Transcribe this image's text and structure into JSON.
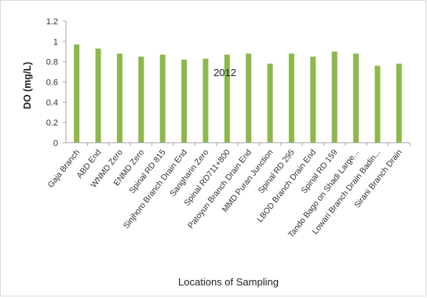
{
  "chart_data": {
    "type": "bar",
    "title": "",
    "annotation": "2012",
    "xlabel": "Locations of Sampling",
    "ylabel": "DO (mg/L)",
    "ylim": [
      0,
      1.2
    ],
    "yticks": [
      "0",
      "0.2",
      "0.4",
      "0.6",
      "0.8",
      "1",
      "1.2"
    ],
    "ytick_values": [
      0,
      0.2,
      0.4,
      0.6,
      0.8,
      1.0,
      1.2
    ],
    "grid": false,
    "bar_color": "#8db84a",
    "categories": [
      "Gaja Branch",
      "ABD End",
      "WNMD Zero",
      "ENMD Zero",
      "Spinal RD 815",
      "Sinjhoro Branch Drain End",
      "Sangharin Zero",
      "Spinal RD711+800",
      "Patoyun Branch Drain End",
      "MMD Puran Junction",
      "Spinal RD 295",
      "LBOD Branch Drain End",
      "Spinal RD 159",
      "Tando Bago on Shadi Large...",
      "Lowari Branch Drain Badin...",
      "Sirani Branch Drain"
    ],
    "values": [
      0.97,
      0.93,
      0.88,
      0.85,
      0.87,
      0.82,
      0.83,
      0.87,
      0.88,
      0.78,
      0.88,
      0.85,
      0.9,
      0.88,
      0.76,
      0.78
    ]
  }
}
